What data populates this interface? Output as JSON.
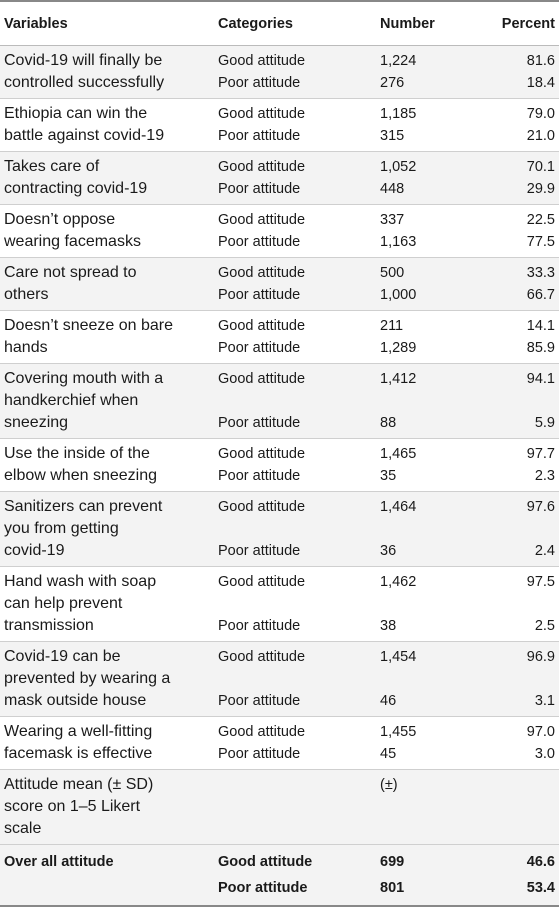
{
  "header": {
    "variables": "Variables",
    "categories": "Categories",
    "number": "Number",
    "percent": "Percent"
  },
  "rows": [
    {
      "variable": [
        "Covid-19 will finally be",
        "controlled successfully"
      ],
      "items": [
        {
          "cat": "Good attitude",
          "num": "1,224",
          "pct": "81.6"
        },
        {
          "cat": "Poor attitude",
          "num": "276",
          "pct": "18.4"
        }
      ]
    },
    {
      "variable": [
        "Ethiopia can win the",
        "battle against covid-19"
      ],
      "items": [
        {
          "cat": "Good attitude",
          "num": "1,185",
          "pct": "79.0"
        },
        {
          "cat": "Poor attitude",
          "num": "315",
          "pct": "21.0"
        }
      ]
    },
    {
      "variable": [
        "Takes care of",
        "contracting covid-19"
      ],
      "items": [
        {
          "cat": "Good attitude",
          "num": "1,052",
          "pct": "70.1"
        },
        {
          "cat": "Poor attitude",
          "num": "448",
          "pct": "29.9"
        }
      ]
    },
    {
      "variable": [
        "Doesn’t oppose",
        "wearing facemasks"
      ],
      "items": [
        {
          "cat": "Good attitude",
          "num": "337",
          "pct": "22.5"
        },
        {
          "cat": "Poor attitude",
          "num": "1,163",
          "pct": "77.5"
        }
      ]
    },
    {
      "variable": [
        "Care not spread to",
        "others"
      ],
      "items": [
        {
          "cat": "Good attitude",
          "num": "500",
          "pct": "33.3"
        },
        {
          "cat": "Poor attitude",
          "num": "1,000",
          "pct": "66.7"
        }
      ]
    },
    {
      "variable": [
        "Doesn’t sneeze on bare",
        "hands"
      ],
      "items": [
        {
          "cat": "Good attitude",
          "num": "211",
          "pct": "14.1"
        },
        {
          "cat": "Poor attitude",
          "num": "1,289",
          "pct": "85.9"
        }
      ]
    },
    {
      "variable": [
        "Covering mouth with a",
        "handkerchief when",
        "sneezing"
      ],
      "items": [
        {
          "cat": "Good attitude",
          "num": "1,412",
          "pct": "94.1"
        },
        {
          "cat": "Poor attitude",
          "num": "88",
          "pct": "5.9"
        }
      ]
    },
    {
      "variable": [
        "Use the inside of the",
        "elbow when sneezing"
      ],
      "items": [
        {
          "cat": "Good attitude",
          "num": "1,465",
          "pct": "97.7"
        },
        {
          "cat": "Poor attitude",
          "num": "35",
          "pct": "2.3"
        }
      ]
    },
    {
      "variable": [
        "Sanitizers can prevent",
        "you from getting",
        "covid-19"
      ],
      "items": [
        {
          "cat": "Good attitude",
          "num": "1,464",
          "pct": "97.6"
        },
        {
          "cat": "Poor attitude",
          "num": "36",
          "pct": "2.4"
        }
      ]
    },
    {
      "variable": [
        "Hand wash with soap",
        "can help prevent",
        "transmission"
      ],
      "items": [
        {
          "cat": "Good attitude",
          "num": "1,462",
          "pct": "97.5"
        },
        {
          "cat": "Poor attitude",
          "num": "38",
          "pct": "2.5"
        }
      ]
    },
    {
      "variable": [
        "Covid-19 can be",
        "prevented by wearing a",
        "mask outside house"
      ],
      "items": [
        {
          "cat": "Good attitude",
          "num": "1,454",
          "pct": "96.9"
        },
        {
          "cat": "Poor attitude",
          "num": "46",
          "pct": "3.1"
        }
      ]
    },
    {
      "variable": [
        "Wearing a well-fitting",
        "facemask is effective"
      ],
      "items": [
        {
          "cat": "Good attitude",
          "num": "1,455",
          "pct": "97.0"
        },
        {
          "cat": "Poor attitude",
          "num": "45",
          "pct": "3.0"
        }
      ]
    },
    {
      "variable": [
        "Attitude mean (± SD)",
        "score on 1–5 Likert",
        "scale"
      ],
      "items": [
        {
          "cat": "",
          "num": "(±)",
          "pct": ""
        }
      ]
    }
  ],
  "overall": {
    "label": "Over all attitude",
    "items": [
      {
        "cat": "Good attitude",
        "num": "699",
        "pct": "46.6"
      },
      {
        "cat": "Poor attitude",
        "num": "801",
        "pct": "53.4"
      }
    ]
  }
}
